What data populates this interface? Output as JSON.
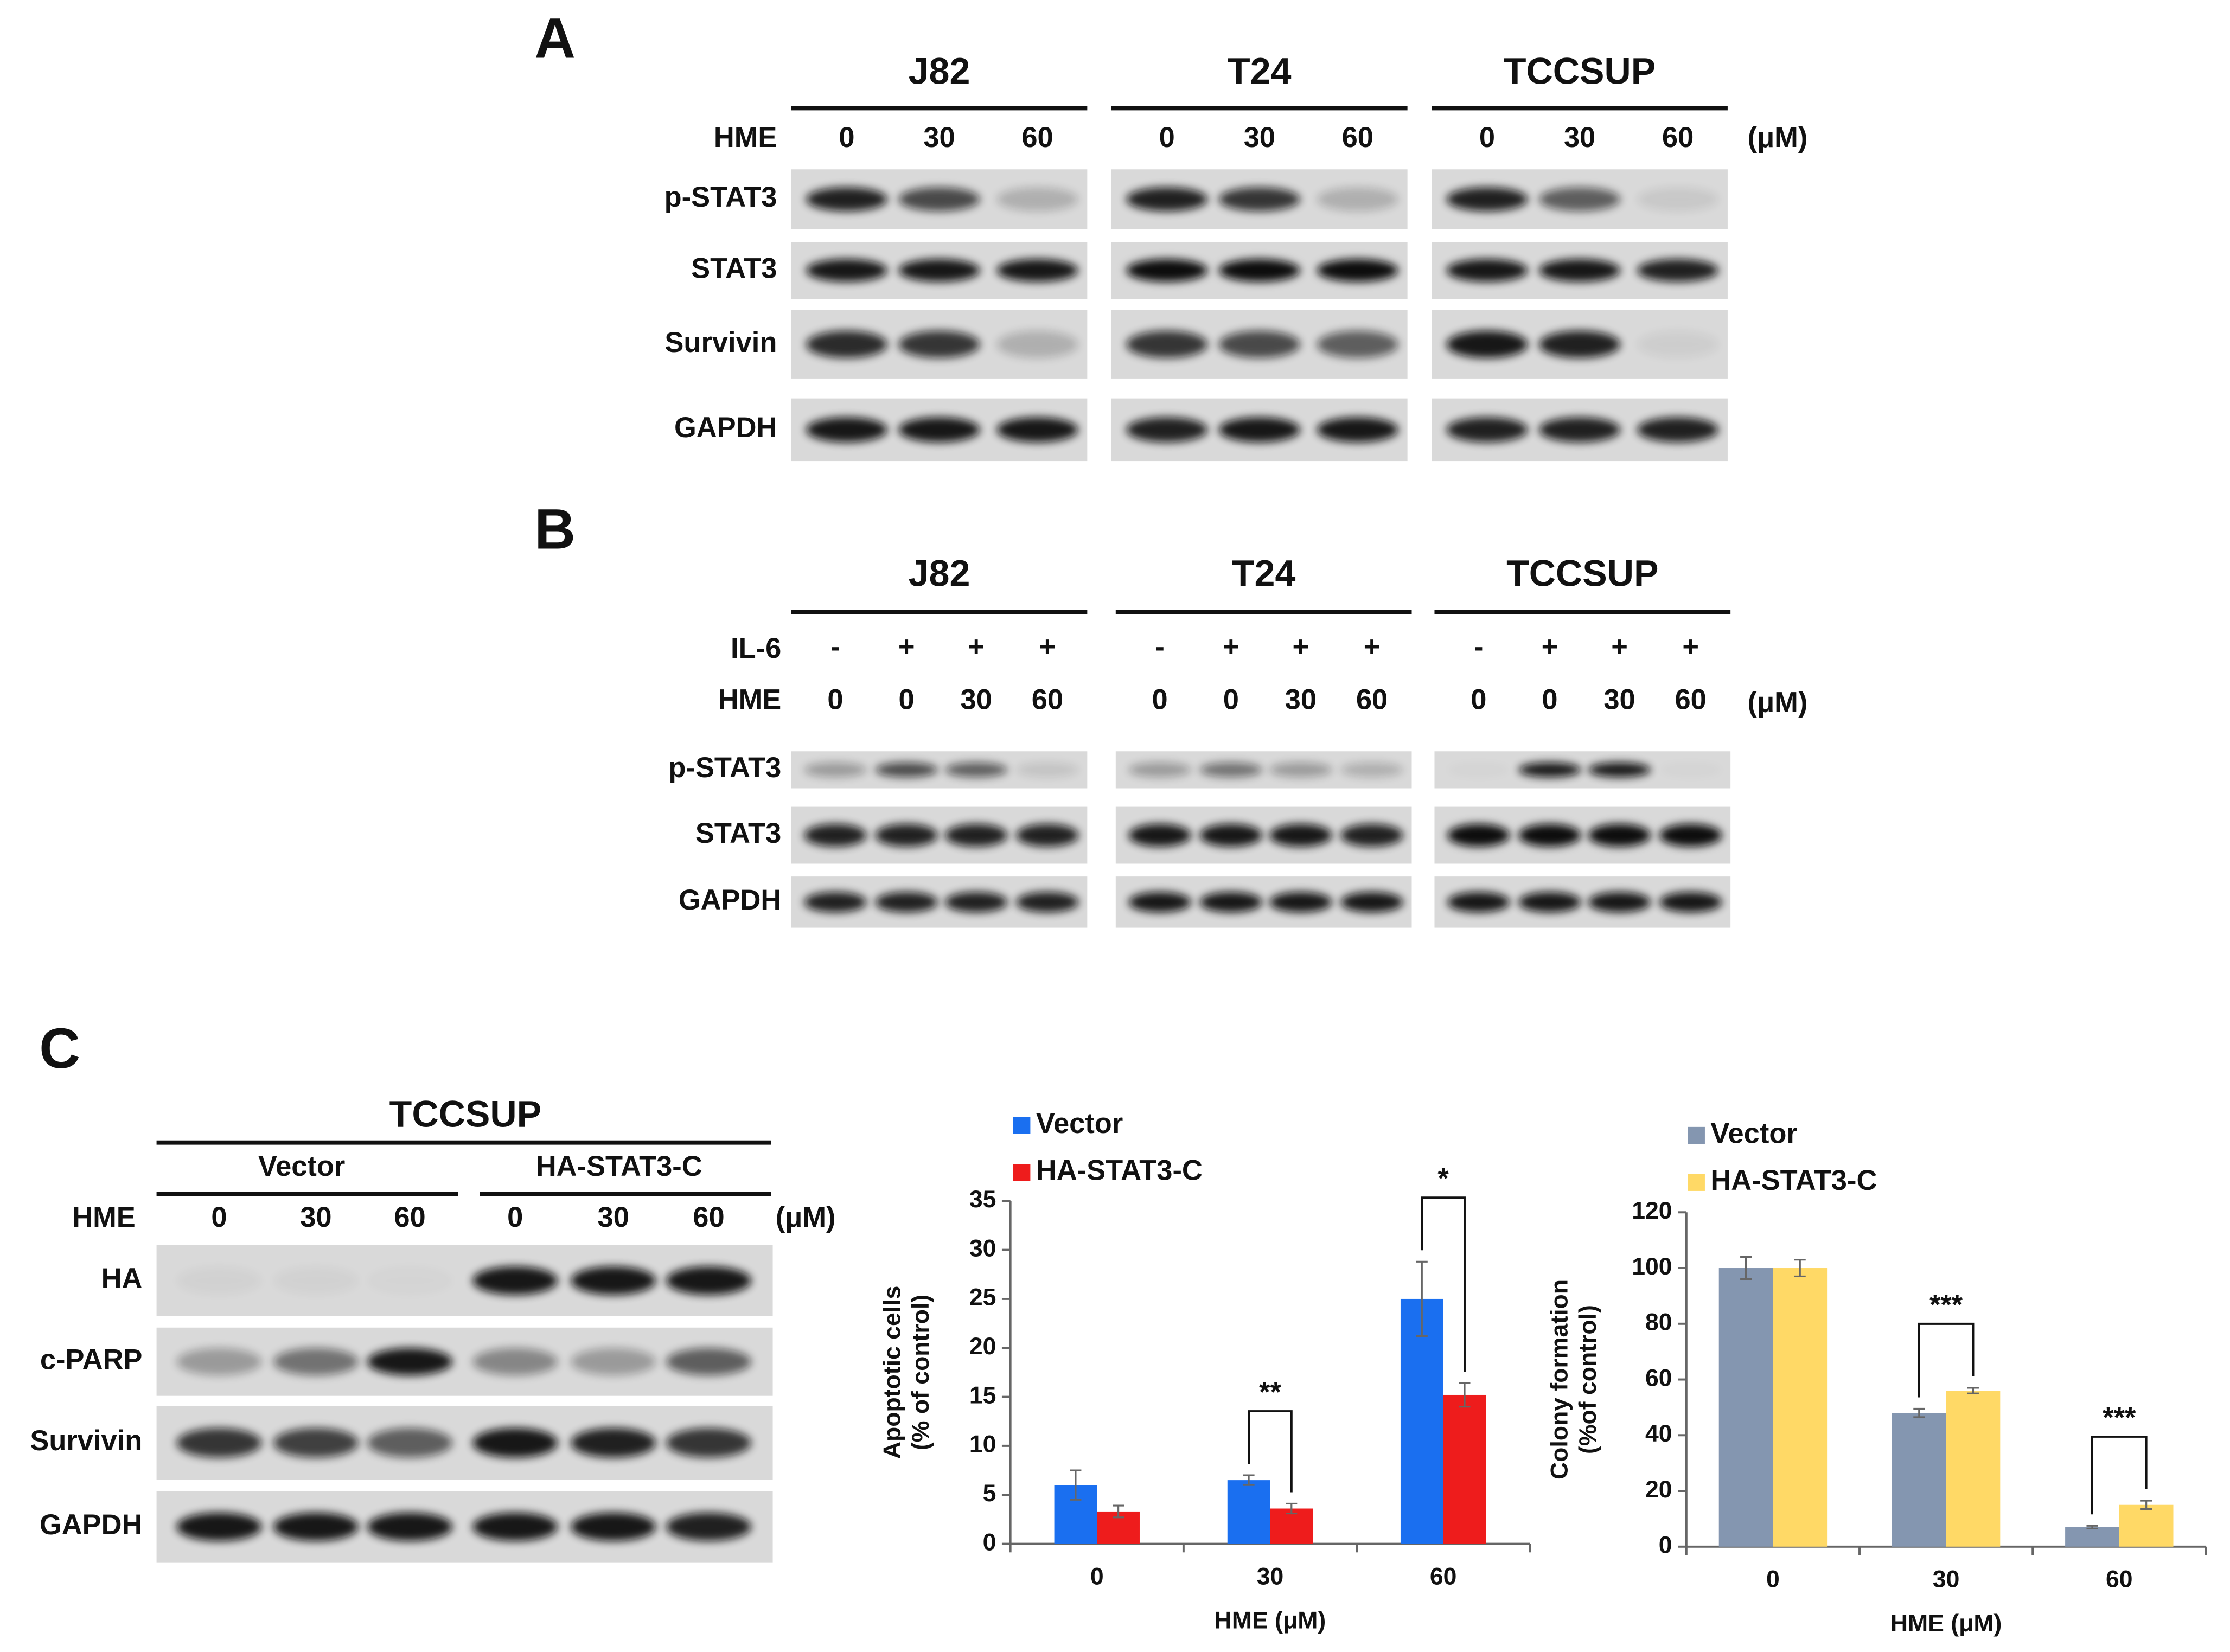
{
  "panel_a": {
    "label": "A",
    "cell_lines": [
      "J82",
      "T24",
      "TCCSUP"
    ],
    "treatment": "HME",
    "doses": [
      "0",
      "30",
      "60"
    ],
    "unit": "(μM)",
    "blots": [
      "p-STAT3",
      "STAT3",
      "Survivin",
      "GAPDH"
    ]
  },
  "panel_b": {
    "label": "B",
    "cell_lines": [
      "J82",
      "T24",
      "TCCSUP"
    ],
    "il6_label": "IL-6",
    "il6": [
      "-",
      "+",
      "+",
      "+"
    ],
    "treatment": "HME",
    "doses": [
      "0",
      "0",
      "30",
      "60"
    ],
    "unit": "(μM)",
    "blots": [
      "p-STAT3",
      "STAT3",
      "GAPDH"
    ]
  },
  "panel_c": {
    "label": "C",
    "cell_line": "TCCSUP",
    "groups": [
      "Vector",
      "HA-STAT3-C"
    ],
    "treatment": "HME",
    "doses": [
      "0",
      "30",
      "60",
      "0",
      "30",
      "60"
    ],
    "unit": "(μM)",
    "blots": [
      "HA",
      "c-PARP",
      "Survivin",
      "GAPDH"
    ]
  },
  "chart_data": [
    {
      "type": "bar",
      "categories": [
        "0",
        "30",
        "60"
      ],
      "xlabel": "HME (μM)",
      "ylabel": [
        "Apoptotic cells",
        "(% of control)"
      ],
      "ylim": [
        0,
        35
      ],
      "yticks": [
        0,
        5,
        10,
        15,
        20,
        25,
        30,
        35
      ],
      "legend": "top-left",
      "series": [
        {
          "name": "Vector",
          "color": "#1a6ff0",
          "values": [
            6,
            6.5,
            25
          ],
          "errors": [
            1.5,
            0.5,
            3.8
          ]
        },
        {
          "name": "HA-STAT3-C",
          "color": "#ee1c1c",
          "values": [
            3.3,
            3.6,
            15.2
          ],
          "errors": [
            0.6,
            0.5,
            1.2
          ]
        }
      ],
      "annotations": [
        {
          "text": "**",
          "category": "30"
        },
        {
          "text": "*",
          "category": "60"
        }
      ]
    },
    {
      "type": "bar",
      "categories": [
        "0",
        "30",
        "60"
      ],
      "xlabel": "HME (μM)",
      "ylabel": [
        "Colony formation",
        "(%of control)"
      ],
      "ylim": [
        0,
        120
      ],
      "yticks": [
        0,
        20,
        40,
        60,
        80,
        100,
        120
      ],
      "legend": "top-left",
      "series": [
        {
          "name": "Vector",
          "color": "#8496b0",
          "values": [
            100,
            48,
            7
          ],
          "errors": [
            4,
            1.5,
            0.5
          ]
        },
        {
          "name": "HA-STAT3-C",
          "color": "#ffd966",
          "values": [
            100,
            56,
            15
          ],
          "errors": [
            3,
            1,
            1.5
          ]
        }
      ],
      "annotations": [
        {
          "text": "***",
          "category": "30"
        },
        {
          "text": "***",
          "category": "60"
        }
      ]
    }
  ]
}
